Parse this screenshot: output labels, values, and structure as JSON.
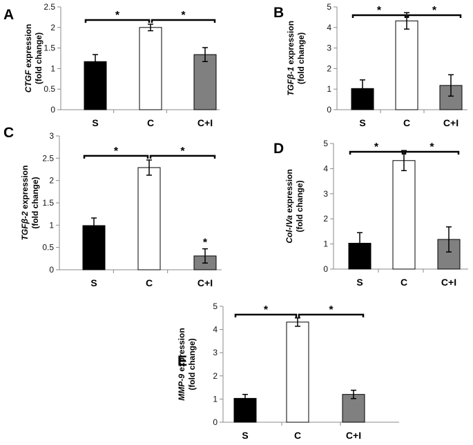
{
  "chart_data": [
    {
      "panel": "A",
      "type": "bar",
      "categories": [
        "S",
        "C",
        "C+I"
      ],
      "values": [
        1.17,
        2.0,
        1.34
      ],
      "errors": [
        0.17,
        0.08,
        0.17
      ],
      "colors": [
        "#000000",
        "#ffffff",
        "#808080"
      ],
      "ylim": [
        0,
        2.5
      ],
      "yticks": [
        "0",
        "0.5",
        "1",
        "1.5",
        "2",
        "2.5"
      ],
      "ylabel_gene": "CTGF",
      "ylabel_rest": " expression",
      "ylabel_sub": "(fold change)",
      "sig_label": "*",
      "bar_stars": [
        "",
        "",
        ""
      ]
    },
    {
      "panel": "B",
      "type": "bar",
      "categories": [
        "S",
        "C",
        "C+I"
      ],
      "values": [
        1.03,
        4.32,
        1.18
      ],
      "errors": [
        0.42,
        0.4,
        0.52
      ],
      "colors": [
        "#000000",
        "#ffffff",
        "#808080"
      ],
      "ylim": [
        0,
        5
      ],
      "yticks": [
        "0",
        "1",
        "2",
        "3",
        "4",
        "5"
      ],
      "ylabel_gene": "TGFβ-1",
      "ylabel_rest": " expression",
      "ylabel_sub": "(fold change)",
      "sig_label": "*",
      "bar_stars": [
        "",
        "",
        ""
      ]
    },
    {
      "panel": "C",
      "type": "bar",
      "categories": [
        "S",
        "C",
        "C+I"
      ],
      "values": [
        0.99,
        2.29,
        0.31
      ],
      "errors": [
        0.17,
        0.17,
        0.16
      ],
      "colors": [
        "#000000",
        "#ffffff",
        "#808080"
      ],
      "ylim": [
        0,
        3
      ],
      "yticks": [
        "0",
        "0.5",
        "1",
        "1.5",
        "2",
        "2.5",
        "3"
      ],
      "ylabel_gene": "TGFβ-2",
      "ylabel_rest": " expression",
      "ylabel_sub": "(fold change)",
      "sig_label": "*",
      "bar_stars": [
        "",
        "",
        "*"
      ]
    },
    {
      "panel": "D",
      "type": "bar",
      "categories": [
        "S",
        "C",
        "C+I"
      ],
      "values": [
        1.03,
        4.32,
        1.18
      ],
      "errors": [
        0.42,
        0.4,
        0.5
      ],
      "colors": [
        "#000000",
        "#ffffff",
        "#808080"
      ],
      "ylim": [
        0,
        5
      ],
      "yticks": [
        "0",
        "1",
        "2",
        "3",
        "4",
        "5"
      ],
      "ylabel_gene": "Col-IVa",
      "ylabel_rest": " expression",
      "ylabel_sub": "(fold change)",
      "sig_label": "*",
      "bar_stars": [
        "",
        "",
        ""
      ]
    },
    {
      "panel": "E",
      "type": "bar",
      "categories": [
        "S",
        "C",
        "C+I"
      ],
      "values": [
        1.03,
        4.32,
        1.2
      ],
      "errors": [
        0.17,
        0.18,
        0.18
      ],
      "colors": [
        "#000000",
        "#ffffff",
        "#808080"
      ],
      "ylim": [
        0,
        5
      ],
      "yticks": [
        "0",
        "1",
        "2",
        "3",
        "4",
        "5"
      ],
      "ylabel_gene": "MMP-9",
      "ylabel_rest": " expression",
      "ylabel_sub": "(fold change)",
      "sig_label": "*",
      "bar_stars": [
        "",
        "",
        ""
      ]
    }
  ]
}
